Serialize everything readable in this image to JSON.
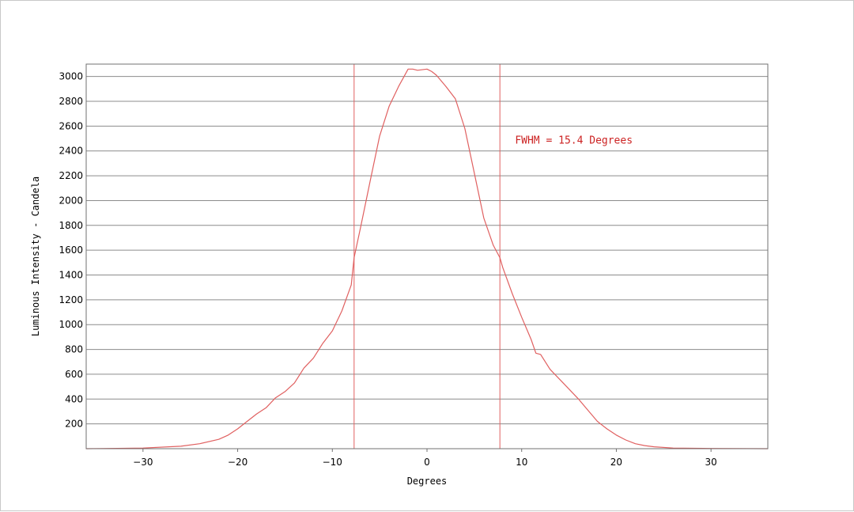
{
  "chart_data": {
    "type": "line",
    "title": "",
    "xlabel": "Degrees",
    "ylabel": "Luminous Intensity - Candela",
    "xlim": [
      -36,
      36
    ],
    "ylim": [
      0,
      3100
    ],
    "x_ticks": [
      -30,
      -20,
      -10,
      0,
      10,
      20,
      30
    ],
    "x_tick_labels": [
      "−30",
      "−20",
      "−10",
      "0",
      "10",
      "20",
      "30"
    ],
    "y_ticks": [
      200,
      400,
      600,
      800,
      1000,
      1200,
      1400,
      1600,
      1800,
      2000,
      2200,
      2400,
      2600,
      2800,
      3000
    ],
    "y_tick_labels": [
      "200",
      "400",
      "600",
      "800",
      "1000",
      "1200",
      "1400",
      "1600",
      "1800",
      "2000",
      "2200",
      "2400",
      "2600",
      "2800",
      "3000"
    ],
    "grid": "horizontal",
    "line_color": "#e06060",
    "series": [
      {
        "x": [
          -36,
          -30,
          -26,
          -24,
          -22,
          -21,
          -20,
          -19,
          -18,
          -17,
          -16,
          -15,
          -14,
          -13,
          -12,
          -11,
          -10,
          -9,
          -8,
          -7.7,
          -7,
          -6,
          -5,
          -4,
          -3,
          -2,
          -1.5,
          -1,
          0,
          0.5,
          1,
          2,
          3,
          4,
          5,
          6,
          7,
          7.7,
          8,
          9,
          10,
          11,
          11.5,
          12,
          13,
          14,
          15,
          16,
          17,
          18,
          19,
          20,
          21,
          22,
          23,
          24,
          26,
          30,
          36
        ],
        "y": [
          0,
          5,
          20,
          40,
          75,
          110,
          160,
          220,
          280,
          330,
          410,
          460,
          530,
          650,
          730,
          850,
          950,
          1110,
          1320,
          1540,
          1790,
          2160,
          2520,
          2760,
          2920,
          3060,
          3060,
          3050,
          3060,
          3040,
          3010,
          2920,
          2820,
          2580,
          2220,
          1860,
          1640,
          1540,
          1460,
          1250,
          1060,
          880,
          770,
          760,
          640,
          560,
          480,
          400,
          310,
          220,
          160,
          110,
          70,
          40,
          25,
          15,
          5,
          2,
          0
        ]
      }
    ],
    "vlines": [
      -7.7,
      7.7
    ],
    "annotation": {
      "text": "FWHM = 15.4 Degrees",
      "x": 9.3,
      "y": 2460,
      "color": "#cc2222"
    }
  }
}
